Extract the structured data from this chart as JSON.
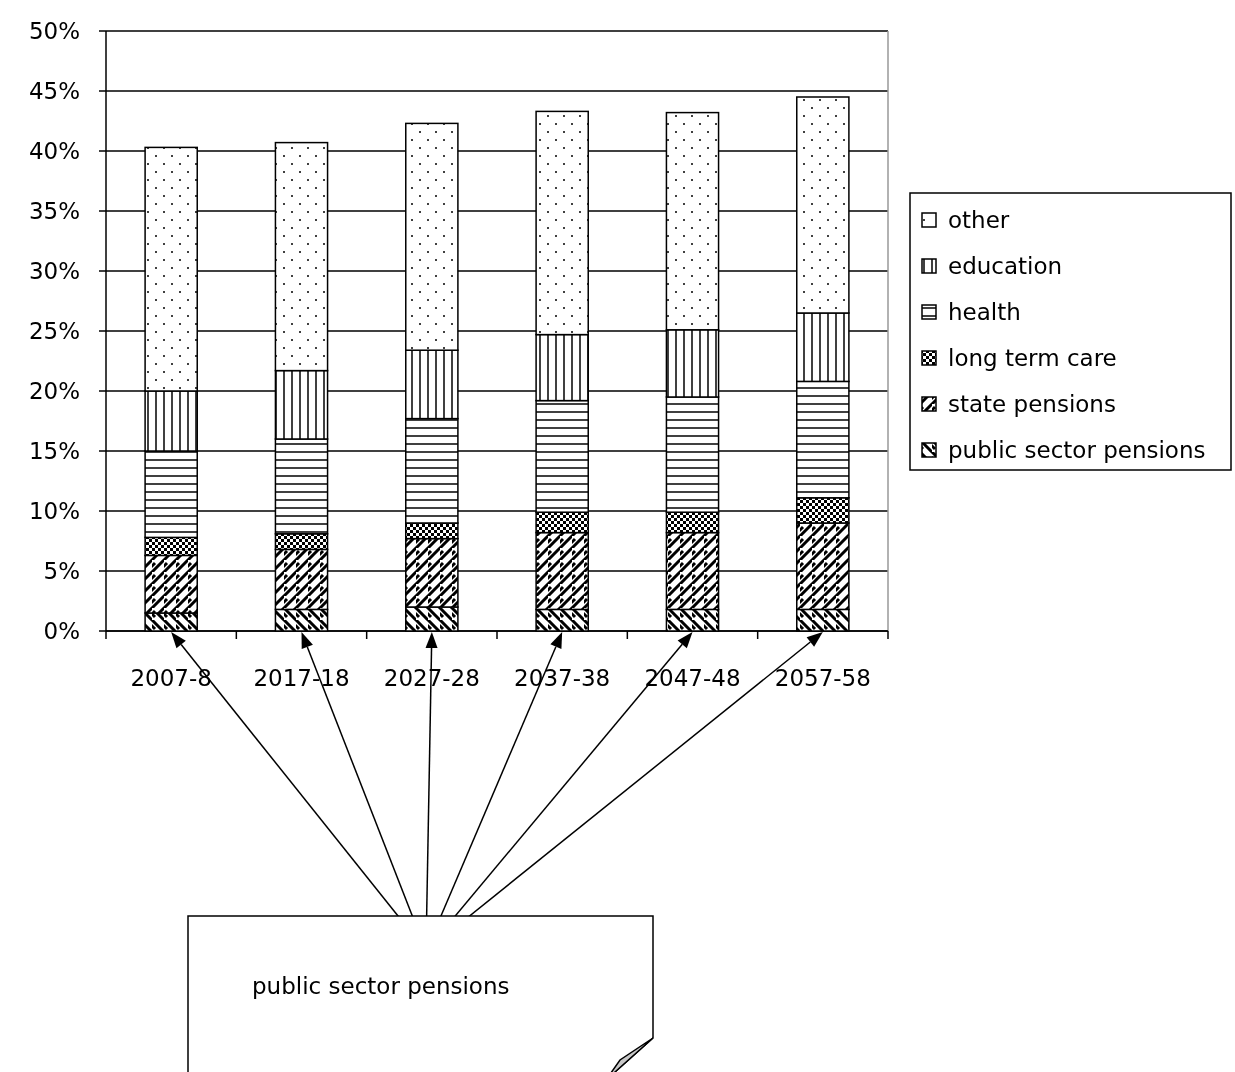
{
  "chart_data": {
    "type": "bar",
    "stacked": true,
    "categories": [
      "2007-8",
      "2017-18",
      "2027-28",
      "2037-38",
      "2047-48",
      "2057-58"
    ],
    "series": [
      {
        "name": "public sector pensions",
        "color": "#000000",
        "values": [
          1.5,
          1.8,
          2.0,
          1.8,
          1.8,
          1.8
        ]
      },
      {
        "name": "state pensions",
        "color": "#000000",
        "values": [
          4.8,
          5.0,
          5.7,
          6.4,
          6.4,
          7.2
        ]
      },
      {
        "name": "long term care",
        "color": "#000000",
        "values": [
          1.5,
          1.3,
          1.3,
          1.7,
          1.7,
          2.1
        ]
      },
      {
        "name": "health",
        "color": "#000000",
        "values": [
          7.2,
          7.9,
          8.7,
          9.3,
          9.6,
          9.7
        ]
      },
      {
        "name": "education",
        "color": "#000000",
        "values": [
          5.0,
          5.7,
          5.7,
          5.5,
          5.6,
          5.7
        ]
      },
      {
        "name": "other",
        "color": "#000000",
        "values": [
          20.3,
          19.0,
          18.9,
          18.6,
          18.1,
          18.0
        ]
      }
    ],
    "ylim": [
      0,
      50
    ],
    "yticks": [
      {
        "value": 0,
        "label": "0%"
      },
      {
        "value": 5,
        "label": "5%"
      },
      {
        "value": 10,
        "label": "10%"
      },
      {
        "value": 15,
        "label": "15%"
      },
      {
        "value": 20,
        "label": "20%"
      },
      {
        "value": 25,
        "label": "25%"
      },
      {
        "value": 30,
        "label": "30%"
      },
      {
        "value": 35,
        "label": "35%"
      },
      {
        "value": 40,
        "label": "40%"
      },
      {
        "value": 45,
        "label": "45%"
      },
      {
        "value": 50,
        "label": "50%"
      }
    ],
    "grid": "y",
    "legend": "right",
    "annotations": [
      "public sector pensions"
    ]
  }
}
